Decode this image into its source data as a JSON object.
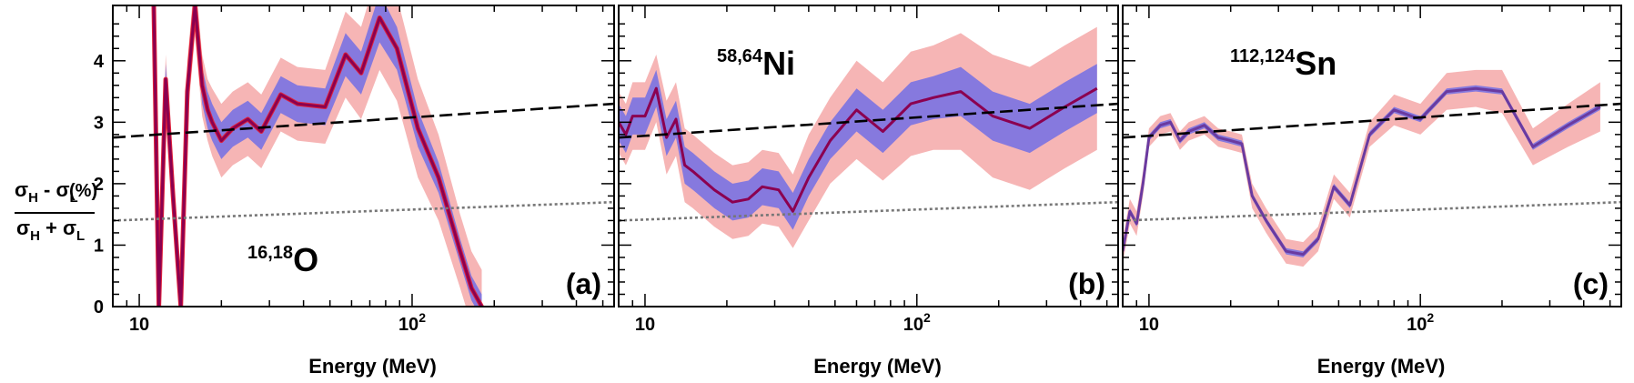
{
  "figure": {
    "ylabel": {
      "num_sigma": "σ",
      "num_sub_h": "H",
      "num_minus": " - ",
      "num_sub_l": "L",
      "unit": "(%)",
      "den_plus": " + "
    },
    "xlabel": "Energy (MeV)"
  },
  "chart_data": [
    {
      "type": "line",
      "panel": "(a)",
      "nucleus_mass": "16,18",
      "nucleus_symbol": "O",
      "xlabel": "Energy (MeV)",
      "xscale": "log",
      "xlim": [
        8,
        550
      ],
      "ylim": [
        0,
        4.9
      ],
      "x_tick_labels": [
        "10",
        "10^2"
      ],
      "y_tick_labels": [
        "0",
        "1",
        "2",
        "3",
        "4"
      ],
      "colors": {
        "line": "#8b0050",
        "inner_band": "#6a6ae8",
        "outer_band": "#f4a8a8",
        "edge_line": "#e0203a"
      },
      "series": [
        {
          "x": [
            11.3,
            11.8,
            12.5,
            13.3,
            14.2,
            15.0,
            16.0,
            17.0,
            17.8,
            18.5,
            20.0,
            22.0,
            25.0,
            28.0,
            33.0,
            38.0,
            48.0,
            57.0,
            65.0,
            76.0,
            88.0,
            105.0,
            125.0,
            150.0,
            165.0,
            180.0
          ],
          "y": [
            4.9,
            0.0,
            3.7,
            1.8,
            0.0,
            3.5,
            4.9,
            3.6,
            3.2,
            3.0,
            2.7,
            2.9,
            3.05,
            2.85,
            3.45,
            3.3,
            3.25,
            4.1,
            3.8,
            4.7,
            4.2,
            2.9,
            2.1,
            0.9,
            0.3,
            0.0
          ],
          "inner_band": [
            0.25,
            0.25,
            0.25,
            0.25,
            0.25,
            0.3,
            0.3,
            0.3,
            0.3,
            0.3,
            0.3,
            0.3,
            0.3,
            0.3,
            0.3,
            0.3,
            0.3,
            0.35,
            0.35,
            0.4,
            0.35,
            0.3,
            0.25,
            0.2,
            0.2,
            0.2
          ],
          "outer_band": [
            0.4,
            0.4,
            0.4,
            0.4,
            0.4,
            0.5,
            0.5,
            0.5,
            0.5,
            0.55,
            0.6,
            0.6,
            0.6,
            0.6,
            0.6,
            0.6,
            0.6,
            0.7,
            0.75,
            0.85,
            0.85,
            0.8,
            0.7,
            0.6,
            0.6,
            0.6
          ]
        }
      ],
      "ref_dashed": {
        "x": [
          8,
          550
        ],
        "y": [
          2.75,
          3.3
        ]
      },
      "ref_dotted": {
        "x": [
          8,
          550
        ],
        "y": [
          1.4,
          1.7
        ]
      }
    },
    {
      "type": "line",
      "panel": "(b)",
      "nucleus_mass": "58,64",
      "nucleus_symbol": "Ni",
      "xlabel": "Energy (MeV)",
      "xscale": "log",
      "xlim": [
        8,
        550
      ],
      "ylim": [
        0,
        4.9
      ],
      "x_tick_labels": [
        "10",
        "10^2"
      ],
      "colors": {
        "line": "#8b0050",
        "inner_band": "#6a6ae8",
        "outer_band": "#f4a8a8"
      },
      "series": [
        {
          "x": [
            8.0,
            8.5,
            9.0,
            10.0,
            11.0,
            12.0,
            13.0,
            14.0,
            15.0,
            18.0,
            21.0,
            24.0,
            27.0,
            31.0,
            35.0,
            40.0,
            48.0,
            60.0,
            75.0,
            95.0,
            115.0,
            145.0,
            190.0,
            260.0,
            350.0,
            460.0
          ],
          "y": [
            3.0,
            2.8,
            3.1,
            3.1,
            3.55,
            2.75,
            3.05,
            2.3,
            2.2,
            1.9,
            1.7,
            1.75,
            1.95,
            1.9,
            1.55,
            2.1,
            2.7,
            3.2,
            2.85,
            3.3,
            3.4,
            3.5,
            3.1,
            2.9,
            3.25,
            3.55
          ],
          "inner_band": [
            0.3,
            0.3,
            0.3,
            0.3,
            0.3,
            0.3,
            0.3,
            0.3,
            0.3,
            0.3,
            0.3,
            0.3,
            0.3,
            0.3,
            0.3,
            0.3,
            0.3,
            0.35,
            0.35,
            0.35,
            0.35,
            0.4,
            0.4,
            0.4,
            0.4,
            0.4
          ],
          "outer_band": [
            0.5,
            0.5,
            0.55,
            0.55,
            0.55,
            0.6,
            0.6,
            0.6,
            0.6,
            0.6,
            0.6,
            0.6,
            0.6,
            0.6,
            0.6,
            0.7,
            0.7,
            0.8,
            0.8,
            0.85,
            0.85,
            0.95,
            1.0,
            1.0,
            1.0,
            1.0
          ]
        }
      ],
      "ref_dashed": {
        "x": [
          8,
          550
        ],
        "y": [
          2.75,
          3.3
        ]
      },
      "ref_dotted": {
        "x": [
          8,
          550
        ],
        "y": [
          1.4,
          1.7
        ]
      }
    },
    {
      "type": "line",
      "panel": "(c)",
      "nucleus_mass": "112,124",
      "nucleus_symbol": "Sn",
      "xlabel": "Energy (MeV)",
      "xscale": "log",
      "xlim": [
        8,
        550
      ],
      "ylim": [
        0,
        4.9
      ],
      "x_tick_labels": [
        "10",
        "10^2"
      ],
      "colors": {
        "line": "#6a3aa0",
        "inner_band": "#6a6ae8",
        "outer_band": "#f4a8a8"
      },
      "series": [
        {
          "x": [
            8.0,
            8.5,
            9.0,
            9.5,
            10.0,
            11.0,
            12.0,
            13.0,
            14.0,
            16.0,
            18.0,
            20.0,
            22.0,
            24.0,
            27.0,
            32.0,
            37.0,
            42.0,
            48.0,
            55.0,
            65.0,
            80.0,
            100.0,
            125.0,
            160.0,
            200.0,
            260.0,
            350.0,
            460.0
          ],
          "y": [
            0.9,
            1.55,
            1.35,
            2.0,
            2.75,
            2.95,
            3.0,
            2.7,
            2.85,
            2.95,
            2.75,
            2.7,
            2.65,
            1.8,
            1.4,
            0.9,
            0.85,
            1.1,
            1.95,
            1.65,
            2.8,
            3.2,
            3.05,
            3.5,
            3.55,
            3.5,
            2.6,
            2.95,
            3.25
          ],
          "inner_band": [
            0.05,
            0.05,
            0.05,
            0.05,
            0.05,
            0.05,
            0.05,
            0.05,
            0.05,
            0.05,
            0.05,
            0.05,
            0.05,
            0.05,
            0.05,
            0.05,
            0.05,
            0.05,
            0.05,
            0.05,
            0.05,
            0.05,
            0.05,
            0.05,
            0.05,
            0.05,
            0.05,
            0.05,
            0.05
          ],
          "outer_band": [
            0.2,
            0.2,
            0.2,
            0.2,
            0.15,
            0.15,
            0.15,
            0.15,
            0.15,
            0.15,
            0.15,
            0.15,
            0.15,
            0.2,
            0.2,
            0.2,
            0.2,
            0.2,
            0.2,
            0.2,
            0.2,
            0.25,
            0.25,
            0.3,
            0.3,
            0.35,
            0.3,
            0.35,
            0.4
          ]
        }
      ],
      "ref_dashed": {
        "x": [
          8,
          550
        ],
        "y": [
          2.75,
          3.3
        ]
      },
      "ref_dotted": {
        "x": [
          8,
          550
        ],
        "y": [
          1.4,
          1.7
        ]
      }
    }
  ]
}
